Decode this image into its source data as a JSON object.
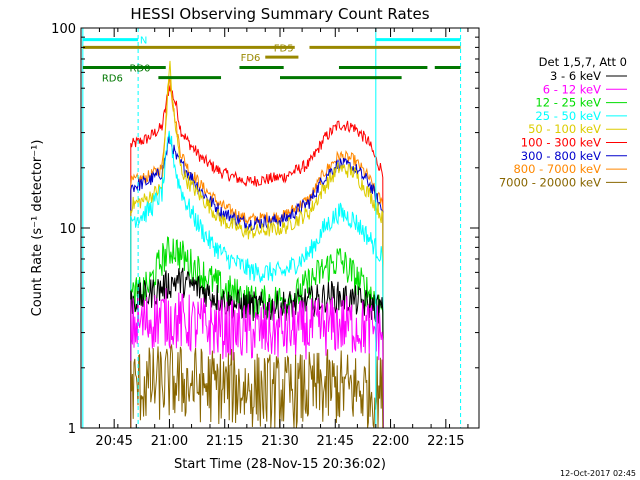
{
  "chart_data": {
    "type": "line",
    "title": "HESSI Observing Summary Count Rates",
    "xlabel": "Start Time (28-Nov-15 20:36:02)",
    "ylabel": "Count Rate (s⁻¹ detector⁻¹)",
    "timestamp": "12-Oct-2017 02:45",
    "y_scale": "log",
    "ylim": [
      1,
      100
    ],
    "xlim_minutes_after_2036": [
      0,
      108
    ],
    "y_ticks": [
      {
        "value": 1,
        "label": "1"
      },
      {
        "value": 10,
        "label": "10"
      },
      {
        "value": 100,
        "label": "100"
      }
    ],
    "x_ticks": [
      {
        "minute": 9,
        "label": "20:45"
      },
      {
        "minute": 24,
        "label": "21:00"
      },
      {
        "minute": 39,
        "label": "21:15"
      },
      {
        "minute": 54,
        "label": "21:30"
      },
      {
        "minute": 69,
        "label": "21:45"
      },
      {
        "minute": 84,
        "label": "22:00"
      },
      {
        "minute": 99,
        "label": "22:15"
      }
    ],
    "legend": {
      "header": "Det 1,5,7, Att 0",
      "placement": "right",
      "entries": [
        {
          "label": "3 - 6 keV",
          "color": "#000000"
        },
        {
          "label": "6 - 12 keV",
          "color": "#ff00ff"
        },
        {
          "label": "12 - 25 keV",
          "color": "#00dd00"
        },
        {
          "label": "25 - 50 keV",
          "color": "#00ffff"
        },
        {
          "label": "50 - 100 keV",
          "color": "#ddcc00"
        },
        {
          "label": "100 - 300 keV",
          "color": "#ff0000"
        },
        {
          "label": "300 - 800 keV",
          "color": "#0000cc"
        },
        {
          "label": "800 - 7000 keV",
          "color": "#ff8800"
        },
        {
          "label": "7000 - 20000 keV",
          "color": "#886600"
        }
      ]
    },
    "data_start_minute": 13.5,
    "data_end_minute": 82,
    "series": [
      {
        "name": "100 - 300 keV",
        "color": "#ff0000",
        "noise": 0.07,
        "x": [
          13.5,
          18,
          22,
          24,
          26,
          27,
          29,
          33,
          38,
          45,
          55,
          62,
          66,
          70,
          74,
          78,
          80,
          82
        ],
        "y": [
          26,
          28,
          32,
          52,
          40,
          31,
          27,
          22,
          19,
          17,
          18,
          21,
          28,
          33,
          32,
          27,
          22,
          19
        ]
      },
      {
        "name": "800 - 7000 keV",
        "color": "#ff8800",
        "noise": 0.07,
        "x": [
          13.5,
          18,
          22,
          24,
          25,
          27,
          29,
          33,
          38,
          45,
          55,
          62,
          66,
          70,
          74,
          78,
          80,
          82
        ],
        "y": [
          17,
          18,
          20,
          60,
          40,
          24,
          20,
          16,
          13,
          11,
          11.5,
          14,
          19,
          23,
          22,
          18,
          15,
          13
        ]
      },
      {
        "name": "300 - 800 keV",
        "color": "#0000cc",
        "noise": 0.08,
        "x": [
          13.5,
          18,
          22,
          24,
          26,
          29,
          33,
          38,
          45,
          55,
          62,
          66,
          70,
          74,
          78,
          82
        ],
        "y": [
          16,
          17,
          19,
          28,
          22,
          19,
          15,
          12,
          10.5,
          11,
          13.5,
          18,
          21,
          20,
          17,
          12
        ]
      },
      {
        "name": "50 - 100 keV",
        "color": "#ddcc00",
        "noise": 0.09,
        "x": [
          13.5,
          18,
          22,
          24,
          25,
          27,
          29,
          33,
          38,
          45,
          55,
          62,
          66,
          70,
          74,
          78,
          80,
          82
        ],
        "y": [
          13,
          14,
          16,
          68,
          40,
          20,
          17,
          14,
          11,
          9.5,
          10,
          12,
          16,
          20,
          19,
          15,
          13,
          11
        ]
      },
      {
        "name": "25 - 50 keV",
        "color": "#00ffff",
        "noise": 0.12,
        "x": [
          13.5,
          18,
          22,
          24,
          26,
          28,
          31,
          35,
          40,
          47,
          55,
          62,
          66,
          70,
          74,
          78,
          82
        ],
        "y": [
          11,
          12,
          15,
          30,
          18,
          14,
          11,
          8.5,
          7,
          6,
          6,
          7.5,
          10,
          12,
          11,
          9,
          7
        ]
      },
      {
        "name": "12 - 25 keV",
        "color": "#00dd00",
        "noise": 0.2,
        "x": [
          13.5,
          18,
          22,
          25,
          30,
          38,
          48,
          58,
          65,
          70,
          75,
          82
        ],
        "y": [
          4.5,
          5,
          7,
          8,
          6.5,
          5,
          4.2,
          4.5,
          6,
          7,
          5.5,
          4
        ]
      },
      {
        "name": "3 - 6 keV",
        "color": "#000000",
        "noise": 0.18,
        "x": [
          13.5,
          20,
          26,
          32,
          40,
          50,
          60,
          68,
          75,
          82
        ],
        "y": [
          4.3,
          4.8,
          5.5,
          5.0,
          4.2,
          4.0,
          4.2,
          4.6,
          4.3,
          3.9
        ]
      },
      {
        "name": "6 - 12 keV",
        "color": "#ff00ff",
        "noise": 0.35,
        "x": [
          13.5,
          22,
          30,
          45,
          60,
          72,
          82
        ],
        "y": [
          3.2,
          3.6,
          3.3,
          3.0,
          3.1,
          3.3,
          3.0
        ]
      },
      {
        "name": "7000 - 20000 keV",
        "color": "#886600",
        "noise": 0.45,
        "x": [
          13.5,
          25,
          40,
          55,
          70,
          82
        ],
        "y": [
          1.6,
          1.7,
          1.6,
          1.5,
          1.6,
          1.5
        ]
      }
    ],
    "vertical_markers": [
      {
        "minute": 0.5,
        "color": "#00ffff",
        "style": "solid"
      },
      {
        "minute": 15.5,
        "color": "#00ffff",
        "style": "dashed"
      },
      {
        "minute": 80,
        "color": "#00ffff",
        "style": "solid"
      },
      {
        "minute": 103,
        "color": "#00ffff",
        "style": "dashed"
      }
    ],
    "flag_bars": [
      {
        "label": "N",
        "color": "#00ffff",
        "y_value": 87.5,
        "segments": [
          [
            0.5,
            15.5
          ],
          [
            80,
            103
          ]
        ]
      },
      {
        "label": "FD5",
        "color": "#998800",
        "y_value": 80,
        "segments": [
          [
            0.5,
            58
          ],
          [
            62,
            103
          ]
        ]
      },
      {
        "label": "FD6",
        "color": "#998800",
        "y_value": 71.5,
        "segments": [
          [
            50,
            59
          ]
        ]
      },
      {
        "label": "RD0",
        "color": "#007700",
        "y_value": 63.5,
        "segments": [
          [
            0.5,
            23
          ],
          [
            43,
            55
          ],
          [
            70,
            94
          ],
          [
            96,
            103
          ]
        ]
      },
      {
        "label": "RD6",
        "color": "#007700",
        "y_value": 56.5,
        "segments": [
          [
            21,
            38
          ],
          [
            54,
            87
          ]
        ]
      }
    ],
    "flag_labels": [
      {
        "text": "N",
        "minute": 17,
        "y_value": 87.5
      },
      {
        "text": "FD5",
        "minute": 55,
        "y_value": 80
      },
      {
        "text": "FD6",
        "minute": 46,
        "y_value": 71.5
      },
      {
        "text": "RD0",
        "minute": 16,
        "y_value": 63.5
      },
      {
        "text": "RD6",
        "minute": 8.5,
        "y_value": 56.5
      }
    ]
  }
}
